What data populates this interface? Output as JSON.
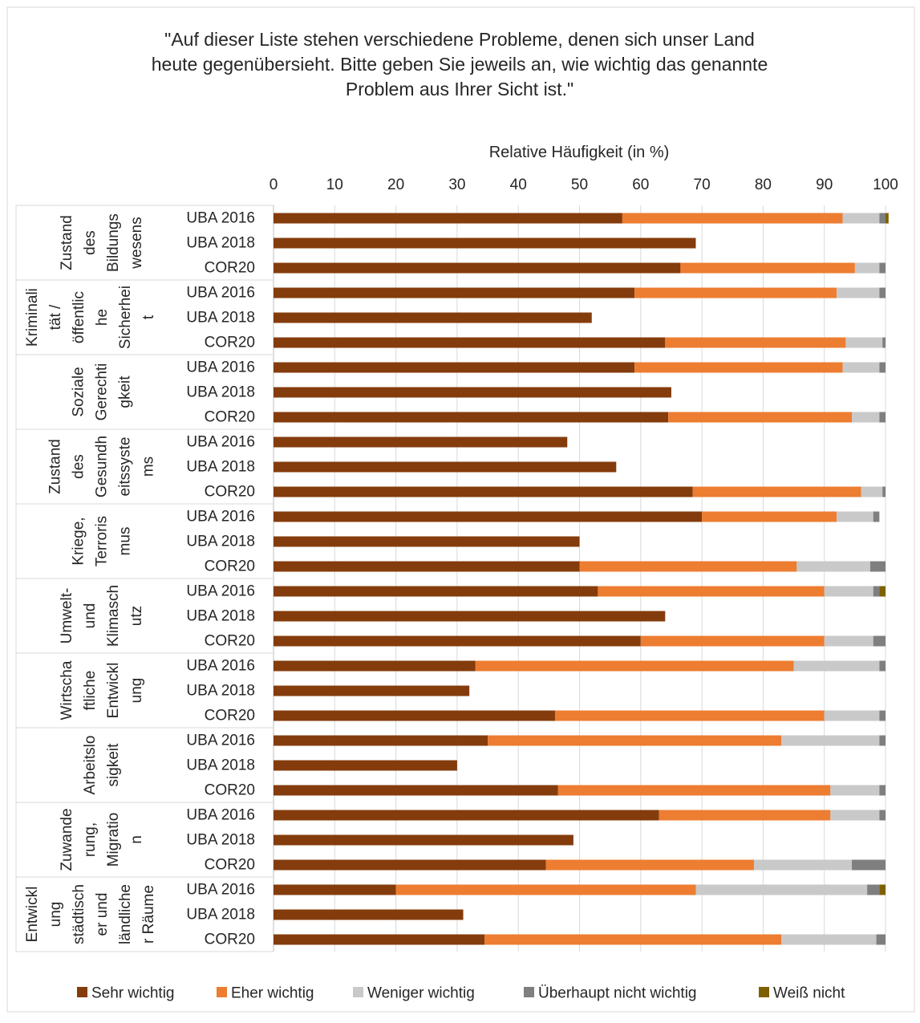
{
  "chart_data": {
    "type": "bar",
    "stacked": true,
    "orientation": "horizontal",
    "title": "\"Auf dieser Liste stehen verschiedene Probleme, denen sich unser Land heute gegenübersieht. Bitte geben Sie jeweils an, wie wichtig das genannte Problem aus Ihrer Sicht ist.\"",
    "title_lines": [
      "\"Auf dieser Liste stehen verschiedene Probleme, denen sich unser Land",
      "heute gegenübersieht. Bitte geben Sie jeweils an, wie wichtig das genannte",
      "Problem aus Ihrer Sicht ist.\""
    ],
    "xlabel": "Relative Häufigkeit (in %)",
    "xlim": [
      0,
      100
    ],
    "xticks": [
      "0",
      "10",
      "20",
      "30",
      "40",
      "50",
      "60",
      "70",
      "80",
      "90",
      "100"
    ],
    "grid": true,
    "legend_position": "bottom",
    "series": [
      {
        "name": "Sehr wichtig",
        "color": "#843C0C"
      },
      {
        "name": "Eher wichtig",
        "color": "#ED7D31"
      },
      {
        "name": "Weniger wichtig",
        "color": "#C9C9C9"
      },
      {
        "name": "Überhaupt nicht wichtig",
        "color": "#7F7F7F"
      },
      {
        "name": "Weiß nicht",
        "color": "#7F6000"
      }
    ],
    "groups": [
      {
        "label_lines": [
          "Zustand",
          "des",
          "Bildungs",
          "wesens"
        ],
        "rows": [
          {
            "label": "UBA 2016",
            "values": [
              57,
              36,
              6,
              1,
              0.5
            ]
          },
          {
            "label": "UBA 2018",
            "values": [
              69,
              0,
              0,
              0,
              0
            ]
          },
          {
            "label": "COR20",
            "values": [
              66.5,
              28.5,
              4,
              1,
              0
            ]
          }
        ]
      },
      {
        "label_lines": [
          "Kriminali",
          "tät /",
          "öffentlic",
          "he",
          "Sicherhei",
          "t"
        ],
        "rows": [
          {
            "label": "UBA 2016",
            "values": [
              59,
              33,
              7,
              1,
              0
            ]
          },
          {
            "label": "UBA 2018",
            "values": [
              52,
              0,
              0,
              0,
              0
            ]
          },
          {
            "label": "COR20",
            "values": [
              64,
              29.5,
              6,
              0.5,
              0
            ]
          }
        ]
      },
      {
        "label_lines": [
          "Soziale",
          "Gerechti",
          "gkeit"
        ],
        "rows": [
          {
            "label": "UBA 2016",
            "values": [
              59,
              34,
              6,
              1,
              0
            ]
          },
          {
            "label": "UBA 2018",
            "values": [
              65,
              0,
              0,
              0,
              0
            ]
          },
          {
            "label": "COR20",
            "values": [
              64.5,
              30,
              4.5,
              1,
              0
            ]
          }
        ]
      },
      {
        "label_lines": [
          "Zustand",
          "des",
          "Gesundh",
          "eitssyste",
          "ms"
        ],
        "rows": [
          {
            "label": "UBA 2016",
            "values": [
              48,
              0,
              0,
              0,
              0
            ]
          },
          {
            "label": "UBA 2018",
            "values": [
              56,
              0,
              0,
              0,
              0
            ]
          },
          {
            "label": "COR20",
            "values": [
              68.5,
              27.5,
              3.5,
              0.5,
              0
            ]
          }
        ]
      },
      {
        "label_lines": [
          "Kriege,",
          "Terroris",
          "mus"
        ],
        "rows": [
          {
            "label": "UBA 2016",
            "values": [
              70,
              22,
              6,
              1,
              0
            ]
          },
          {
            "label": "UBA 2018",
            "values": [
              50,
              0,
              0,
              0,
              0
            ]
          },
          {
            "label": "COR20",
            "values": [
              50,
              35.5,
              12,
              2.5,
              0
            ]
          }
        ]
      },
      {
        "label_lines": [
          "Umwelt-",
          "und",
          "Klimasch",
          "utz"
        ],
        "rows": [
          {
            "label": "UBA 2016",
            "values": [
              53,
              37,
              8,
              1,
              1
            ]
          },
          {
            "label": "UBA 2018",
            "values": [
              64,
              0,
              0,
              0,
              0
            ]
          },
          {
            "label": "COR20",
            "values": [
              60,
              30,
              8,
              2,
              0
            ]
          }
        ]
      },
      {
        "label_lines": [
          "Wirtscha",
          "ftliche",
          "Entwickl",
          "ung"
        ],
        "rows": [
          {
            "label": "UBA 2016",
            "values": [
              33,
              52,
              14,
              1,
              0
            ]
          },
          {
            "label": "UBA 2018",
            "values": [
              32,
              0,
              0,
              0,
              0
            ]
          },
          {
            "label": "COR20",
            "values": [
              46,
              44,
              9,
              1,
              0
            ]
          }
        ]
      },
      {
        "label_lines": [
          "Arbeitslo",
          "sigkeit"
        ],
        "rows": [
          {
            "label": "UBA 2016",
            "values": [
              35,
              48,
              16,
              1,
              0
            ]
          },
          {
            "label": "UBA 2018",
            "values": [
              30,
              0,
              0,
              0,
              0
            ]
          },
          {
            "label": "COR20",
            "values": [
              46.5,
              44.5,
              8,
              1,
              0
            ]
          }
        ]
      },
      {
        "label_lines": [
          "Zuwande",
          "rung,",
          "Migratio",
          "n"
        ],
        "rows": [
          {
            "label": "UBA 2016",
            "values": [
              63,
              28,
              8,
              1,
              0
            ]
          },
          {
            "label": "UBA 2018",
            "values": [
              49,
              0,
              0,
              0,
              0
            ]
          },
          {
            "label": "COR20",
            "values": [
              44.5,
              34,
              16,
              5.5,
              0
            ]
          }
        ]
      },
      {
        "label_lines": [
          "Entwickl",
          "ung",
          "städtisch",
          "er und",
          "ländliche",
          "r Räume"
        ],
        "rows": [
          {
            "label": "UBA 2016",
            "values": [
              20,
              49,
              28,
              2,
              1
            ]
          },
          {
            "label": "UBA 2018",
            "values": [
              31,
              0,
              0,
              0,
              0
            ]
          },
          {
            "label": "COR20",
            "values": [
              34.5,
              48.5,
              15.5,
              1.5,
              0
            ]
          }
        ]
      }
    ]
  }
}
